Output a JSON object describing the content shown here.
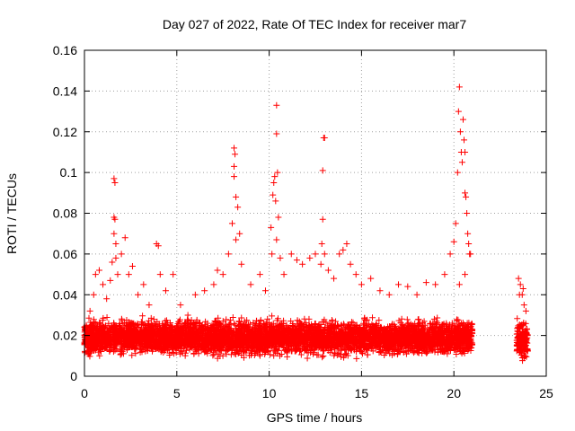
{
  "chart_data": {
    "type": "scatter",
    "title": "Day 027 of 2022, Rate Of TEC Index for receiver mar7",
    "xlabel": "GPS time / hours",
    "ylabel": "ROTI / TECUs",
    "xlim": [
      0,
      25
    ],
    "ylim": [
      0,
      0.16
    ],
    "x_ticks": [
      "0",
      "5",
      "10",
      "15",
      "20",
      "25"
    ],
    "y_ticks": [
      "0",
      "0.02",
      "0.04",
      "0.06",
      "0.08",
      "0.1",
      "0.12",
      "0.14",
      "0.16"
    ],
    "grid": true,
    "marker": "+",
    "colors": {
      "points": "#ff0000",
      "grid": "#a0a0a0",
      "axes": "#000000"
    },
    "bands": [
      {
        "x": [
          0.0,
          21.0
        ],
        "y": [
          0.008,
          0.03
        ]
      },
      {
        "x": [
          23.4,
          24.0
        ],
        "y": [
          0.006,
          0.03
        ]
      }
    ],
    "points": [
      [
        0.1,
        0.025
      ],
      [
        0.3,
        0.032
      ],
      [
        0.5,
        0.04
      ],
      [
        0.6,
        0.05
      ],
      [
        0.8,
        0.052
      ],
      [
        1.0,
        0.045
      ],
      [
        1.2,
        0.038
      ],
      [
        1.4,
        0.047
      ],
      [
        1.5,
        0.056
      ],
      [
        1.6,
        0.097
      ],
      [
        1.65,
        0.095
      ],
      [
        1.6,
        0.078
      ],
      [
        1.65,
        0.077
      ],
      [
        1.6,
        0.07
      ],
      [
        1.7,
        0.065
      ],
      [
        1.7,
        0.058
      ],
      [
        1.8,
        0.05
      ],
      [
        2.0,
        0.06
      ],
      [
        2.2,
        0.068
      ],
      [
        2.4,
        0.05
      ],
      [
        2.6,
        0.054
      ],
      [
        2.9,
        0.04
      ],
      [
        3.2,
        0.045
      ],
      [
        3.5,
        0.035
      ],
      [
        3.9,
        0.065
      ],
      [
        4.0,
        0.064
      ],
      [
        4.1,
        0.05
      ],
      [
        4.4,
        0.042
      ],
      [
        4.8,
        0.05
      ],
      [
        5.2,
        0.035
      ],
      [
        5.6,
        0.03
      ],
      [
        6.0,
        0.04
      ],
      [
        6.5,
        0.042
      ],
      [
        7.0,
        0.045
      ],
      [
        7.2,
        0.052
      ],
      [
        7.5,
        0.05
      ],
      [
        7.8,
        0.06
      ],
      [
        8.0,
        0.075
      ],
      [
        8.1,
        0.112
      ],
      [
        8.15,
        0.109
      ],
      [
        8.1,
        0.103
      ],
      [
        8.1,
        0.098
      ],
      [
        8.2,
        0.088
      ],
      [
        8.3,
        0.083
      ],
      [
        8.2,
        0.067
      ],
      [
        8.4,
        0.07
      ],
      [
        8.5,
        0.055
      ],
      [
        9.0,
        0.045
      ],
      [
        9.5,
        0.05
      ],
      [
        9.8,
        0.042
      ],
      [
        10.1,
        0.073
      ],
      [
        10.15,
        0.06
      ],
      [
        10.2,
        0.089
      ],
      [
        10.25,
        0.095
      ],
      [
        10.3,
        0.098
      ],
      [
        10.35,
        0.086
      ],
      [
        10.4,
        0.133
      ],
      [
        10.4,
        0.119
      ],
      [
        10.45,
        0.1
      ],
      [
        10.5,
        0.078
      ],
      [
        10.4,
        0.067
      ],
      [
        10.6,
        0.058
      ],
      [
        10.8,
        0.05
      ],
      [
        11.2,
        0.06
      ],
      [
        11.5,
        0.057
      ],
      [
        11.8,
        0.055
      ],
      [
        12.2,
        0.058
      ],
      [
        12.5,
        0.06
      ],
      [
        12.8,
        0.055
      ],
      [
        12.95,
        0.117
      ],
      [
        13.0,
        0.117
      ],
      [
        12.9,
        0.101
      ],
      [
        12.9,
        0.077
      ],
      [
        12.85,
        0.065
      ],
      [
        13.0,
        0.06
      ],
      [
        13.2,
        0.052
      ],
      [
        13.5,
        0.048
      ],
      [
        13.8,
        0.06
      ],
      [
        14.0,
        0.062
      ],
      [
        14.2,
        0.065
      ],
      [
        14.4,
        0.055
      ],
      [
        14.7,
        0.05
      ],
      [
        15.0,
        0.045
      ],
      [
        15.5,
        0.048
      ],
      [
        16.0,
        0.042
      ],
      [
        16.5,
        0.04
      ],
      [
        17.0,
        0.045
      ],
      [
        17.5,
        0.044
      ],
      [
        18.0,
        0.04
      ],
      [
        18.5,
        0.046
      ],
      [
        19.0,
        0.045
      ],
      [
        19.5,
        0.05
      ],
      [
        19.8,
        0.06
      ],
      [
        20.0,
        0.066
      ],
      [
        20.1,
        0.075
      ],
      [
        20.2,
        0.1
      ],
      [
        20.25,
        0.13
      ],
      [
        20.3,
        0.142
      ],
      [
        20.35,
        0.12
      ],
      [
        20.4,
        0.11
      ],
      [
        20.45,
        0.105
      ],
      [
        20.5,
        0.126
      ],
      [
        20.55,
        0.116
      ],
      [
        20.6,
        0.11
      ],
      [
        20.6,
        0.09
      ],
      [
        20.65,
        0.088
      ],
      [
        20.7,
        0.08
      ],
      [
        20.75,
        0.07
      ],
      [
        20.8,
        0.065
      ],
      [
        20.85,
        0.06
      ],
      [
        20.9,
        0.06
      ],
      [
        20.6,
        0.05
      ],
      [
        20.3,
        0.045
      ],
      [
        23.5,
        0.048
      ],
      [
        23.6,
        0.045
      ],
      [
        23.7,
        0.04
      ],
      [
        23.8,
        0.035
      ],
      [
        23.9,
        0.032
      ],
      [
        23.55,
        0.04
      ],
      [
        23.75,
        0.043
      ]
    ]
  }
}
